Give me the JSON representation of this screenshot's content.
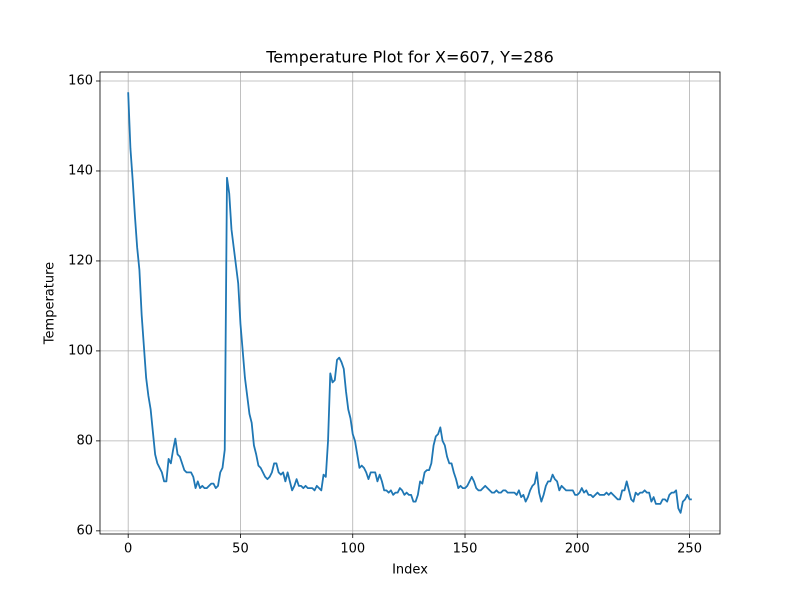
{
  "chart_data": {
    "type": "line",
    "title": "Temperature Plot for X=607, Y=286",
    "x_label": "Index",
    "y_label": "Temperature",
    "x": [
      0,
      1,
      2,
      3,
      4,
      5,
      6,
      7,
      8,
      9,
      10,
      11,
      12,
      13,
      14,
      15,
      16,
      17,
      18,
      19,
      20,
      21,
      22,
      23,
      24,
      25,
      26,
      27,
      28,
      29,
      30,
      31,
      32,
      33,
      34,
      35,
      36,
      37,
      38,
      39,
      40,
      41,
      42,
      43,
      44,
      45,
      46,
      47,
      48,
      49,
      50,
      51,
      52,
      53,
      54,
      55,
      56,
      57,
      58,
      59,
      60,
      61,
      62,
      63,
      64,
      65,
      66,
      67,
      68,
      69,
      70,
      71,
      72,
      73,
      74,
      75,
      76,
      77,
      78,
      79,
      80,
      81,
      82,
      83,
      84,
      85,
      86,
      87,
      88,
      89,
      90,
      91,
      92,
      93,
      94,
      95,
      96,
      97,
      98,
      99,
      100,
      101,
      102,
      103,
      104,
      105,
      106,
      107,
      108,
      109,
      110,
      111,
      112,
      113,
      114,
      115,
      116,
      117,
      118,
      119,
      120,
      121,
      122,
      123,
      124,
      125,
      126,
      127,
      128,
      129,
      130,
      131,
      132,
      133,
      134,
      135,
      136,
      137,
      138,
      139,
      140,
      141,
      142,
      143,
      144,
      145,
      146,
      147,
      148,
      149,
      150,
      151,
      152,
      153,
      154,
      155,
      156,
      157,
      158,
      159,
      160,
      161,
      162,
      163,
      164,
      165,
      166,
      167,
      168,
      169,
      170,
      171,
      172,
      173,
      174,
      175,
      176,
      177,
      178,
      179,
      180,
      181,
      182,
      183,
      184,
      185,
      186,
      187,
      188,
      189,
      190,
      191,
      192,
      193,
      194,
      195,
      196,
      197,
      198,
      199,
      200,
      201,
      202,
      203,
      204,
      205,
      206,
      207,
      208,
      209,
      210,
      211,
      212,
      213,
      214,
      215,
      216,
      217,
      218,
      219,
      220,
      221,
      222,
      223,
      224,
      225,
      226,
      227,
      228,
      229,
      230,
      231,
      232,
      233,
      234,
      235,
      236,
      237,
      238,
      239,
      240,
      241,
      242,
      243,
      244,
      245,
      246,
      247,
      248,
      249,
      250,
      251
    ],
    "values": [
      157.5,
      145,
      138,
      130,
      123,
      118,
      108,
      101,
      94,
      90,
      87,
      82,
      77,
      75,
      74,
      73,
      71,
      71,
      76,
      75,
      78,
      80.5,
      77,
      76.5,
      75,
      73.5,
      73,
      73,
      73,
      72,
      69.5,
      71,
      69.5,
      70,
      69.5,
      69.5,
      70,
      70.5,
      70.5,
      69.5,
      70,
      73,
      74,
      78,
      138.5,
      135,
      127,
      123,
      119,
      115,
      106,
      100,
      94,
      90,
      86,
      84,
      79,
      77,
      74.5,
      74,
      73,
      72,
      71.5,
      72,
      73,
      75,
      75,
      73,
      72.5,
      73,
      71,
      73,
      71,
      69,
      70,
      71.5,
      70,
      70,
      69.5,
      70,
      69.5,
      69.5,
      69.5,
      69,
      70,
      69.5,
      69,
      72.5,
      72,
      80,
      95,
      93,
      93.5,
      98,
      98.5,
      97.5,
      96,
      91,
      87,
      85,
      81.5,
      80,
      77,
      74,
      74.5,
      74,
      73,
      71.5,
      73,
      73,
      73,
      71,
      72.5,
      71,
      69,
      69,
      68.5,
      69,
      68,
      68.5,
      68.5,
      69.5,
      69,
      68,
      68.5,
      68,
      68,
      66.5,
      66.5,
      68,
      71,
      70.5,
      73,
      73.5,
      73.5,
      75,
      79,
      81,
      81.5,
      83,
      80,
      79,
      76.5,
      75,
      75,
      73,
      71.5,
      69.5,
      70,
      69.5,
      69.5,
      70,
      71,
      72,
      71,
      69.5,
      69,
      69,
      69.5,
      70,
      69.5,
      69,
      68.5,
      68.5,
      69,
      68.5,
      68.5,
      69,
      69,
      68.5,
      68.5,
      68.5,
      68.5,
      68,
      69,
      67.5,
      68,
      66.5,
      67.5,
      69,
      70,
      70.5,
      73,
      68.5,
      66.5,
      68,
      70,
      71,
      71,
      72.5,
      71.5,
      71,
      69,
      70,
      69.5,
      69,
      69,
      69,
      69,
      68,
      68,
      68.5,
      69.5,
      68.5,
      69,
      68,
      68,
      67.5,
      68,
      68.5,
      68,
      68,
      68,
      68.5,
      68,
      68.5,
      68,
      67.5,
      67,
      67,
      69,
      69,
      71,
      69,
      67,
      66.5,
      68.5,
      68,
      68.5,
      68.5,
      69,
      68.5,
      68.5,
      66.5,
      67.5,
      66,
      66,
      66,
      67,
      67,
      66.5,
      68,
      68.5,
      68.5,
      69,
      65,
      64,
      66.5,
      67,
      68,
      67,
      67
    ],
    "color": "#1f77b4",
    "xlim": [
      -12.55,
      263.55
    ],
    "xticks": [
      0,
      50,
      100,
      150,
      200,
      250
    ],
    "ylim": [
      59.3,
      162
    ],
    "yticks": [
      60,
      80,
      100,
      120,
      140,
      160
    ],
    "grid": true
  }
}
